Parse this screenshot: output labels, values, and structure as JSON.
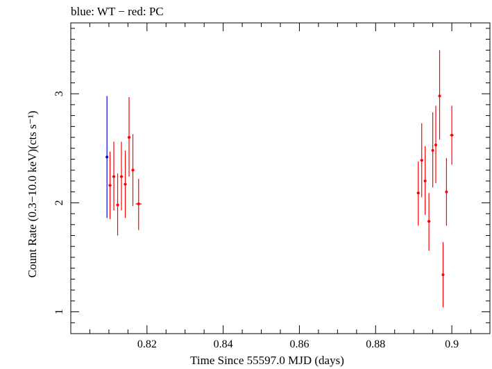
{
  "chart_data": {
    "type": "scatter",
    "title": "blue: WT − red: PC",
    "xlabel": "Time Since 55597.0 MJD (days)",
    "ylabel": "Count Rate (0.3−10.0 keV)(cts s⁻¹)",
    "xlim": [
      0.8,
      0.91
    ],
    "ylim": [
      0.8,
      3.65
    ],
    "x_ticks": [
      "0.82",
      "0.84",
      "0.86",
      "0.88",
      "0.9"
    ],
    "y_ticks": [
      "1",
      "2",
      "3"
    ],
    "grid": false,
    "series": [
      {
        "name": "WT",
        "color": "#0000ff",
        "points": [
          {
            "x": 0.8095,
            "y": 2.42,
            "xerr": 0.0001,
            "ylo": 1.86,
            "yhi": 2.98
          }
        ]
      },
      {
        "name": "PC",
        "color": "#ff0000",
        "points": [
          {
            "x": 0.8103,
            "y": 2.16,
            "xerr": 0.0004,
            "ylo": 1.85,
            "yhi": 2.47
          },
          {
            "x": 0.8113,
            "y": 2.24,
            "xerr": 0.0004,
            "ylo": 1.93,
            "yhi": 2.56
          },
          {
            "x": 0.8123,
            "y": 1.98,
            "xerr": 0.0004,
            "ylo": 1.7,
            "yhi": 2.27
          },
          {
            "x": 0.8133,
            "y": 2.24,
            "xerr": 0.0004,
            "ylo": 1.93,
            "yhi": 2.56
          },
          {
            "x": 0.8143,
            "y": 2.17,
            "xerr": 0.0004,
            "ylo": 1.86,
            "yhi": 2.48
          },
          {
            "x": 0.8153,
            "y": 2.6,
            "xerr": 0.0004,
            "ylo": 2.24,
            "yhi": 2.97
          },
          {
            "x": 0.8163,
            "y": 2.3,
            "xerr": 0.0004,
            "ylo": 1.97,
            "yhi": 2.63
          },
          {
            "x": 0.8178,
            "y": 1.99,
            "xerr": 0.0008,
            "ylo": 1.75,
            "yhi": 2.22
          },
          {
            "x": 0.8912,
            "y": 2.09,
            "xerr": 0.0004,
            "ylo": 1.79,
            "yhi": 2.38
          },
          {
            "x": 0.8921,
            "y": 2.39,
            "xerr": 0.0004,
            "ylo": 2.05,
            "yhi": 2.73
          },
          {
            "x": 0.893,
            "y": 2.2,
            "xerr": 0.0003,
            "ylo": 1.89,
            "yhi": 2.52
          },
          {
            "x": 0.894,
            "y": 1.83,
            "xerr": 0.0004,
            "ylo": 1.56,
            "yhi": 2.09
          },
          {
            "x": 0.895,
            "y": 2.48,
            "xerr": 0.0003,
            "ylo": 2.14,
            "yhi": 2.83
          },
          {
            "x": 0.8958,
            "y": 2.53,
            "xerr": 0.0003,
            "ylo": 2.18,
            "yhi": 2.89
          },
          {
            "x": 0.8968,
            "y": 2.98,
            "xerr": 0.0003,
            "ylo": 2.58,
            "yhi": 3.4
          },
          {
            "x": 0.8977,
            "y": 1.34,
            "xerr": 0.0002,
            "ylo": 1.04,
            "yhi": 1.64
          },
          {
            "x": 0.8986,
            "y": 2.1,
            "xerr": 0.0003,
            "ylo": 1.79,
            "yhi": 2.41
          },
          {
            "x": 0.9,
            "y": 2.62,
            "xerr": 0.0005,
            "ylo": 2.35,
            "yhi": 2.89
          }
        ]
      }
    ]
  }
}
